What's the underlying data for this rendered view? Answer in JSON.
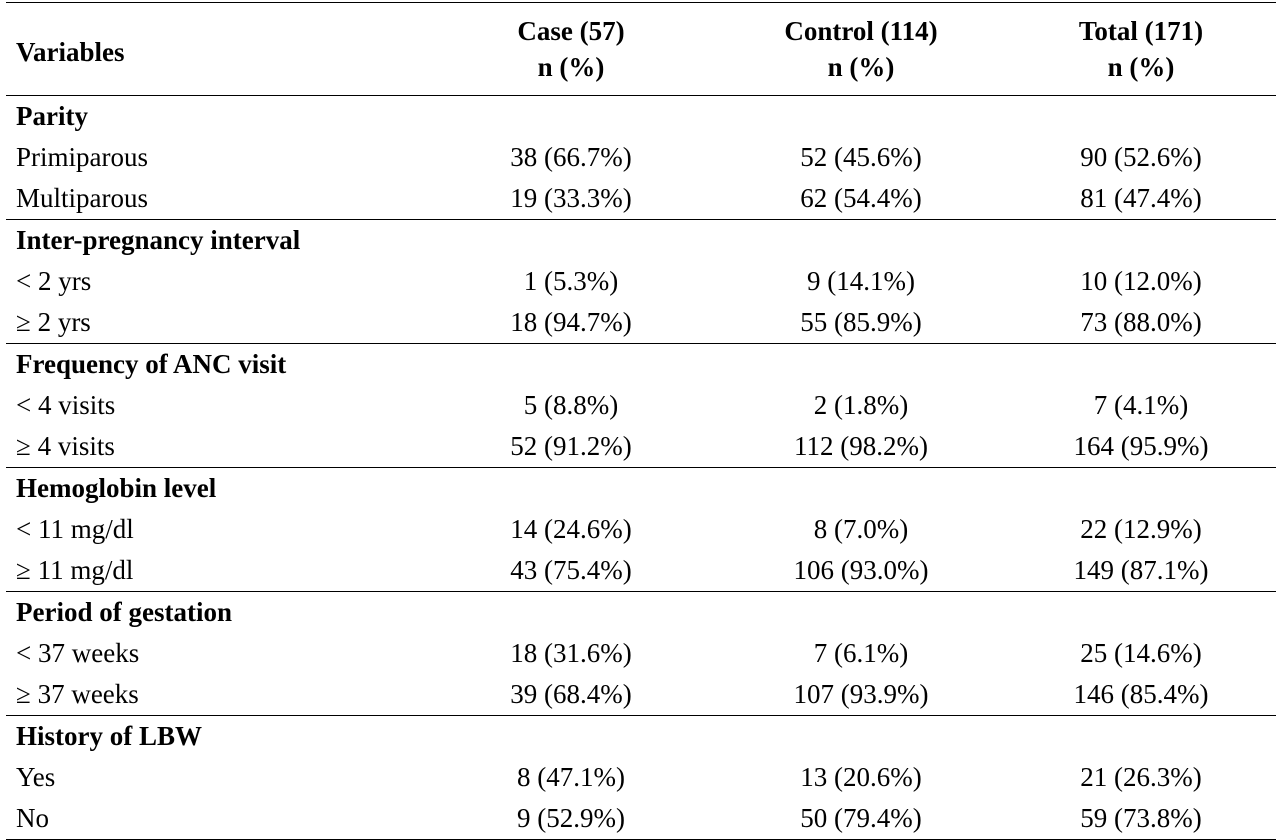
{
  "header": {
    "variables": "Variables",
    "groups": [
      {
        "name": "Case (57)",
        "unit": "n (%)"
      },
      {
        "name": "Control (114)",
        "unit": "n (%)"
      },
      {
        "name": "Total (171)",
        "unit": "n (%)"
      }
    ]
  },
  "sections": [
    {
      "title": "Parity",
      "rows": [
        {
          "label": "Primiparous",
          "case": "38 (66.7%)",
          "control": "52 (45.6%)",
          "total": "90 (52.6%)"
        },
        {
          "label": "Multiparous",
          "case": "19 (33.3%)",
          "control": "62 (54.4%)",
          "total": "81 (47.4%)"
        }
      ]
    },
    {
      "title": "Inter-pregnancy interval",
      "rows": [
        {
          "label": "< 2 yrs",
          "case": "1 (5.3%)",
          "control": "9 (14.1%)",
          "total": "10 (12.0%)"
        },
        {
          "label": "≥ 2 yrs",
          "case": "18 (94.7%)",
          "control": "55 (85.9%)",
          "total": "73 (88.0%)"
        }
      ]
    },
    {
      "title": "Frequency of ANC visit",
      "rows": [
        {
          "label": "< 4 visits",
          "case": "5 (8.8%)",
          "control": "2 (1.8%)",
          "total": "7 (4.1%)"
        },
        {
          "label": "≥ 4 visits",
          "case": "52 (91.2%)",
          "control": "112 (98.2%)",
          "total": "164 (95.9%)"
        }
      ]
    },
    {
      "title": "Hemoglobin level",
      "rows": [
        {
          "label": "< 11 mg/dl",
          "case": "14 (24.6%)",
          "control": "8 (7.0%)",
          "total": "22 (12.9%)"
        },
        {
          "label": "≥ 11 mg/dl",
          "case": "43 (75.4%)",
          "control": "106 (93.0%)",
          "total": "149 (87.1%)"
        }
      ]
    },
    {
      "title": "Period of gestation",
      "rows": [
        {
          "label": "< 37 weeks",
          "case": "18 (31.6%)",
          "control": "7 (6.1%)",
          "total": "25 (14.6%)"
        },
        {
          "label": "≥ 37 weeks",
          "case": "39 (68.4%)",
          "control": "107 (93.9%)",
          "total": "146 (85.4%)"
        }
      ]
    },
    {
      "title": "History of LBW",
      "rows": [
        {
          "label": "Yes",
          "case": "8 (47.1%)",
          "control": "13 (20.6%)",
          "total": "21 (26.3%)"
        },
        {
          "label": "No",
          "case": "9 (52.9%)",
          "control": "50 (79.4%)",
          "total": "59 (73.8%)"
        }
      ]
    }
  ]
}
